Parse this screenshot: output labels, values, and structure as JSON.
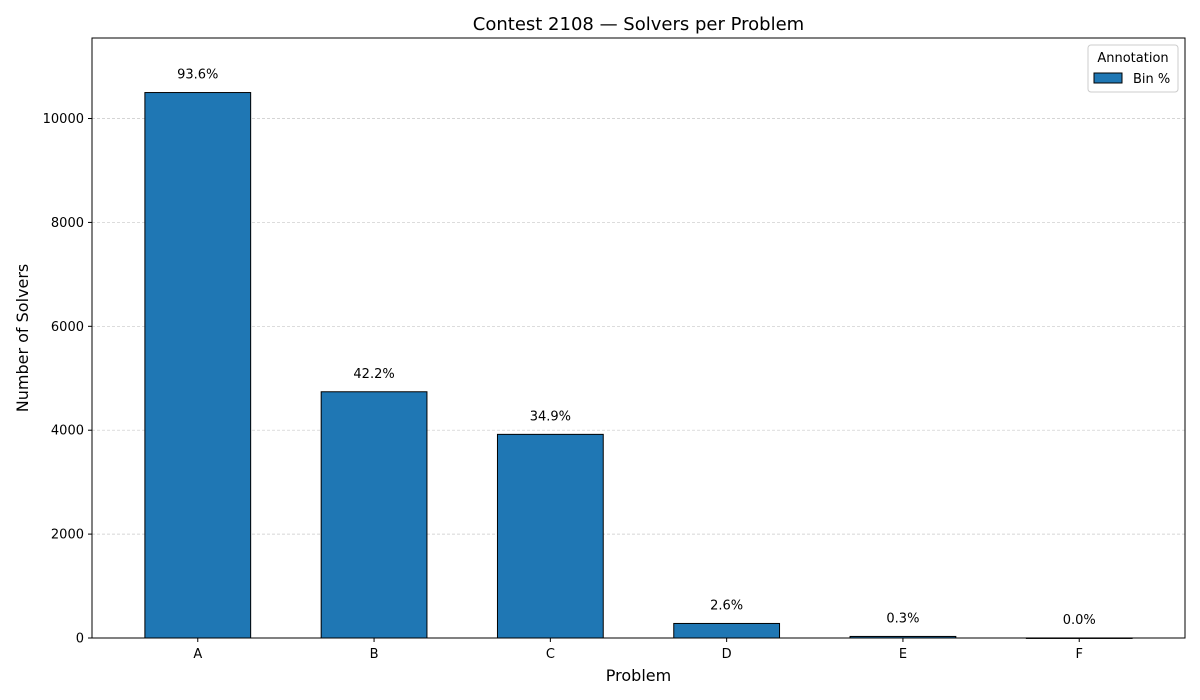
{
  "chart_data": {
    "type": "bar",
    "title": "Contest 2108 — Solvers per Problem",
    "xlabel": "Problem",
    "ylabel": "Number of Solvers",
    "categories": [
      "A",
      "B",
      "C",
      "D",
      "E",
      "F"
    ],
    "values": [
      10500,
      4740,
      3920,
      280,
      30,
      1
    ],
    "data_labels": [
      "93.6%",
      "42.2%",
      "34.9%",
      "2.6%",
      "0.3%",
      "0.0%"
    ],
    "ylim": [
      0,
      11550
    ],
    "yticks": [
      0,
      2000,
      4000,
      6000,
      8000,
      10000
    ],
    "grid": "y-dashed",
    "legend": {
      "title": "Annotation",
      "placement": "top-right",
      "entries": [
        {
          "name": "Bin %",
          "color": "#1f77b4"
        }
      ]
    },
    "colors": {
      "bar": "#1f77b4",
      "edge": "#000000",
      "grid": "#c8c8c8"
    }
  }
}
